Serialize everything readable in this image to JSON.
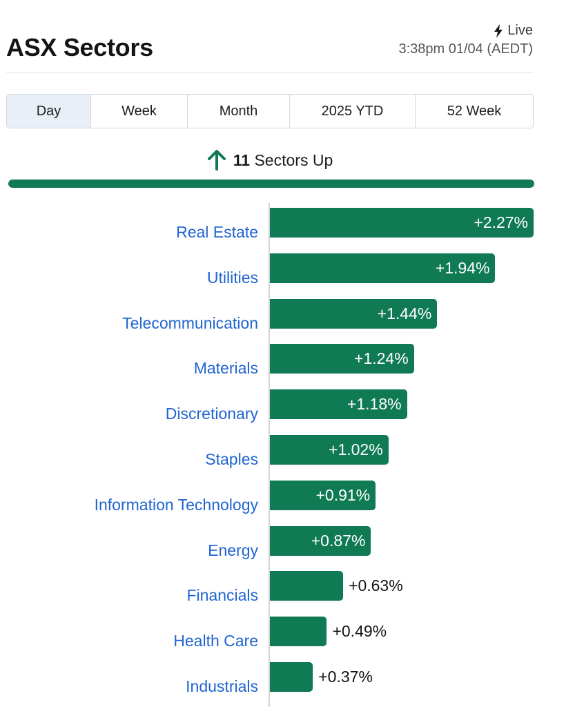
{
  "header": {
    "title": "ASX Sectors",
    "live_label": "Live",
    "timestamp": "3:38pm 01/04 (AEDT)"
  },
  "tabs": [
    {
      "label": "Day",
      "active": true
    },
    {
      "label": "Week",
      "active": false
    },
    {
      "label": "Month",
      "active": false
    },
    {
      "label": "2025 YTD",
      "active": false
    },
    {
      "label": "52 Week",
      "active": false
    }
  ],
  "summary": {
    "count": "11",
    "text": "Sectors Up",
    "up_fraction": 1.0
  },
  "colors": {
    "positive": "#0f7a53",
    "link": "#2165d1"
  },
  "chart_data": {
    "type": "bar",
    "orientation": "horizontal",
    "categories": [
      "Real Estate",
      "Utilities",
      "Telecommunication",
      "Materials",
      "Discretionary",
      "Staples",
      "Information Technology",
      "Energy",
      "Financials",
      "Health Care",
      "Industrials"
    ],
    "values": [
      2.27,
      1.94,
      1.44,
      1.24,
      1.18,
      1.02,
      0.91,
      0.87,
      0.63,
      0.49,
      0.37
    ],
    "value_labels": [
      "+2.27%",
      "+1.94%",
      "+1.44%",
      "+1.24%",
      "+1.18%",
      "+1.02%",
      "+0.91%",
      "+0.87%",
      "+0.63%",
      "+0.49%",
      "+0.37%"
    ]
  }
}
